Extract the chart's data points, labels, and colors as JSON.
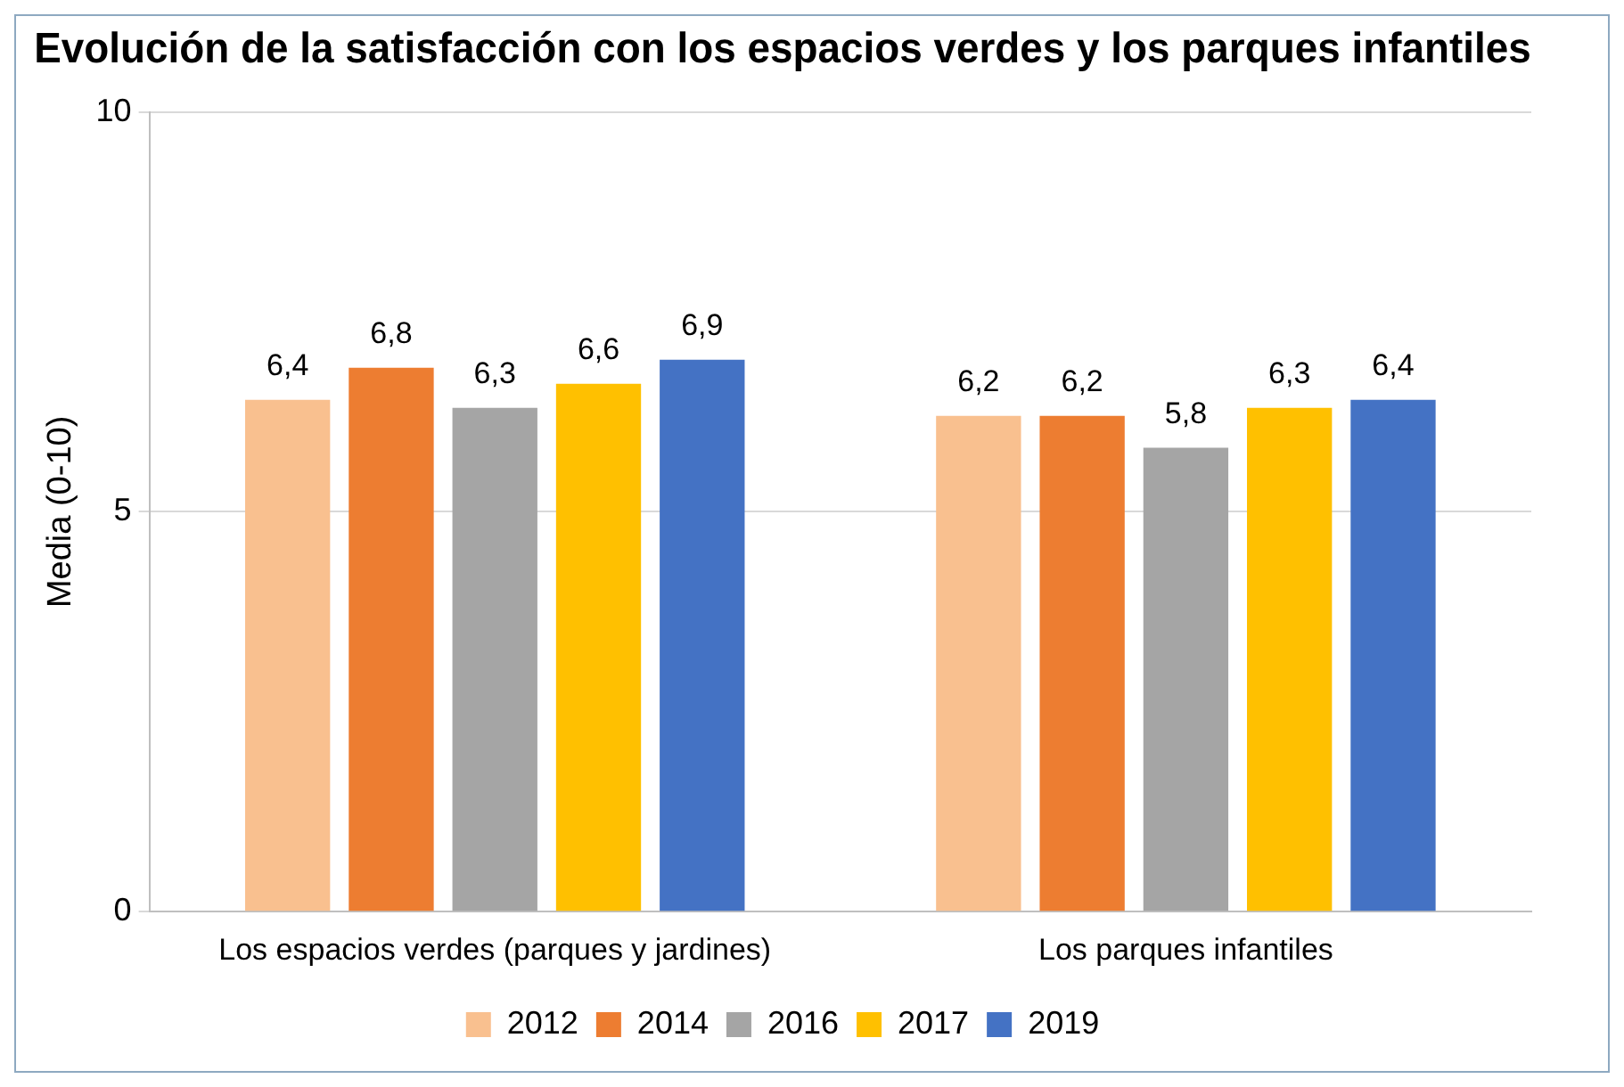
{
  "chart_data": {
    "type": "bar",
    "title": "Evolución de la satisfacción con los espacios verdes y los parques infantiles",
    "ylabel": "Media (0-10)",
    "categories": [
      "Los espacios verdes (parques y jardines)",
      "Los parques infantiles"
    ],
    "series": [
      {
        "name": "2012",
        "color": "#f9c08f",
        "values": [
          6.4,
          6.2
        ],
        "value_labels": [
          "6,4",
          "6,2"
        ]
      },
      {
        "name": "2014",
        "color": "#ed7d31",
        "values": [
          6.8,
          6.2
        ],
        "value_labels": [
          "6,8",
          "6,2"
        ]
      },
      {
        "name": "2016",
        "color": "#a5a5a5",
        "values": [
          6.3,
          5.8
        ],
        "value_labels": [
          "6,3",
          "5,8"
        ]
      },
      {
        "name": "2017",
        "color": "#ffc000",
        "values": [
          6.6,
          6.3
        ],
        "value_labels": [
          "6,6",
          "6,3"
        ]
      },
      {
        "name": "2019",
        "color": "#4472c4",
        "values": [
          6.9,
          6.4
        ],
        "value_labels": [
          "6,9",
          "6,4"
        ]
      }
    ],
    "ylim": [
      0,
      10
    ],
    "yticks": [
      0,
      5,
      10
    ],
    "grid": "y",
    "legend": "bottom"
  }
}
